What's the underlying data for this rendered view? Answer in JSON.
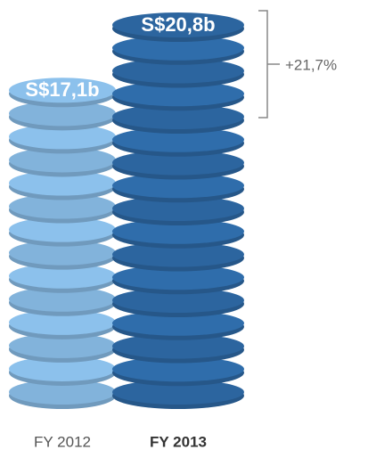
{
  "chart_data": {
    "type": "bar",
    "categories": [
      "FY 2012",
      "FY 2013"
    ],
    "values": [
      17.1,
      20.8
    ],
    "value_labels": [
      "S$17,1b",
      "S$20,8b"
    ],
    "colors": [
      "#8cc1ec",
      "#2f6dab"
    ],
    "annotation": "+21,7%"
  }
}
